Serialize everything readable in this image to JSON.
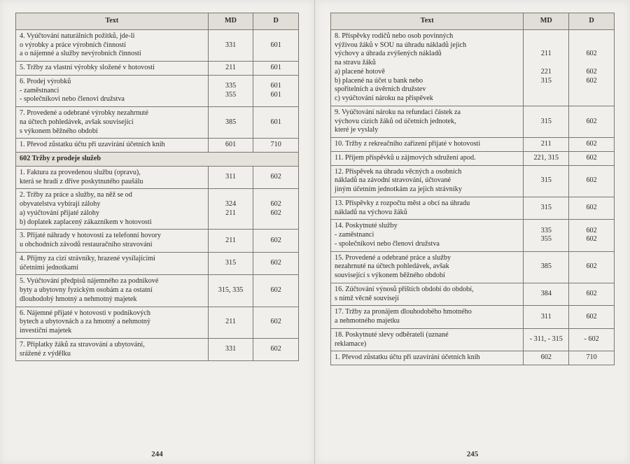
{
  "headers": {
    "text": "Text",
    "md": "MD",
    "d": "D"
  },
  "leftPageNum": "244",
  "rightPageNum": "245",
  "leftRows": [
    {
      "text": "4.  Vyúčtování naturálních požitků, jde-li\n     o výrobky a práce výrobních činností\n     a o nájemné a služby nevýrobních činností",
      "md": "331",
      "d": "601"
    },
    {
      "text": "5.  Tržby za vlastní výrobky složené v hotovosti",
      "md": "211",
      "d": "601"
    },
    {
      "text": "6.  Prodej výrobků\n     - zaměstnanci\n     - společníkovi nebo členovi družstva",
      "md": "335\n355",
      "d": "601\n601"
    },
    {
      "text": "7.  Provedené a odebrané výrobky nezahrnuté\n     na účtech pohledávek, avšak související\n     s výkonem běžného období",
      "md": "385",
      "d": "601"
    },
    {
      "text": "1.  Převod zůstatku účtu při uzavírání účetních knih",
      "md": "601",
      "d": "710"
    },
    {
      "section": true,
      "text": "602 Tržby z prodeje služeb"
    },
    {
      "text": "1.  Faktura za provedenou službu (opravu),\n     která se hradí z dříve poskytnutého paušálu",
      "md": "311",
      "d": "602"
    },
    {
      "text": "2.  Tržby za práce a služby, na něž se od\n     obyvatelstva vybírají zálohy\n     a) vyúčtování přijaté zálohy\n     b) doplatek zaplacený zákazníkem v hotovosti",
      "md": "324\n211",
      "d": "602\n602"
    },
    {
      "text": "3.  Přijaté náhrady v hotovosti za telefonní hovory\n     u obchodních závodů restauračního stravování",
      "md": "211",
      "d": "602"
    },
    {
      "text": "4.  Příjmy za cizí strávníky, hrazené vysílajícími\n     účetními jednotkami",
      "md": "315",
      "d": "602"
    },
    {
      "text": "5.  Vyúčtování předpisů nájemného za podnikové\n     byty a ubytovny fyzickým osobám a za ostatní\n     dlouhodobý hmotný a nehmotný majetek",
      "md": "315, 335",
      "d": "602"
    },
    {
      "text": "6.  Nájemné přijaté v hotovosti v podnikových\n     bytech a ubytovnách a za hmotný a nehmotný\n     investiční majetek",
      "md": "211",
      "d": "602"
    },
    {
      "text": "7.  Příplatky žáků za stravování a ubytování,\n     srážené z výdělku",
      "md": "331",
      "d": "602"
    }
  ],
  "rightRows": [
    {
      "text": "8.  Příspěvky rodičů nebo osob povinných\n     výživou žáků v SOU na úhradu nákladů jejich\n     výchovy a úhrada zvýšených nákladů\n     na stravu žáků\n     a) placené hotově\n     b) placené na účet u bank nebo\n         spořitelních a úvěrních družstev\n     c) vyúčtování nároku na příspěvek",
      "md": "211\n\n221\n315",
      "d": "602\n\n602\n602"
    },
    {
      "text": "9.  Vyúčtování nároku na refundaci částek za\n     výchovu cizích žáků od účetních jednotek,\n     které je vyslaly",
      "md": "315",
      "d": "602"
    },
    {
      "text": "10. Tržby z rekreačního zařízení přijaté v hotovosti",
      "md": "211",
      "d": "602"
    },
    {
      "text": "11. Příjem příspěvků u zájmových sdružení apod.",
      "md": "221, 315",
      "d": "602"
    },
    {
      "text": "12. Příspěvek na úhradu věcných a osobních\n     nákladů na závodní stravování, účtované\n     jiným účetním jednotkám za jejich strávníky",
      "md": "315",
      "d": "602"
    },
    {
      "text": "13. Příspěvky z rozpočtu měst a obcí na úhradu\n     nákladů na výchovu žáků",
      "md": "315",
      "d": "602"
    },
    {
      "text": "14. Poskytnuté služby\n     - zaměstnanci\n     - společníkovi nebo členovi družstva",
      "md": "335\n355",
      "d": "602\n602"
    },
    {
      "text": "15. Provedené a odebrané práce a služby\n     nezahrnuté na účtech pohledávek, avšak\n     související s výkonem běžného období",
      "md": "385",
      "d": "602"
    },
    {
      "text": "16. Zúčtování výnosů příštích období do období,\n     s nímž věcně souvisejí",
      "md": "384",
      "d": "602"
    },
    {
      "text": "17. Tržby za pronájem dlouhodobého hmotného\n     a nehmotného majetku",
      "md": "311",
      "d": "602"
    },
    {
      "text": "18. Poskytnuté slevy odběrateli (uznané\n     reklamace)",
      "md": "- 311, - 315",
      "d": "- 602"
    },
    {
      "text": "1.  Převod zůstatku účtu při uzavírání účetních knih",
      "md": "602",
      "d": "710"
    }
  ]
}
